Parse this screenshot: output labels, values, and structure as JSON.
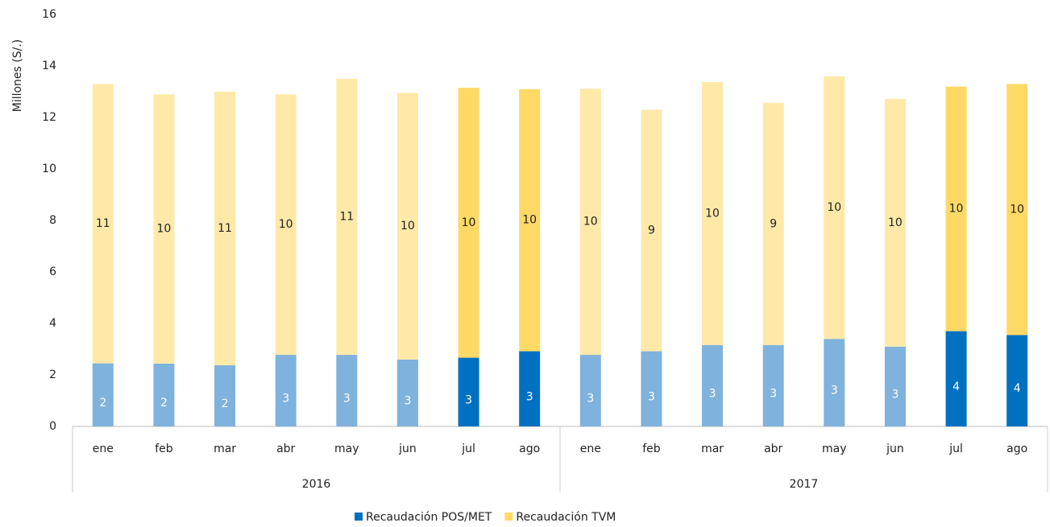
{
  "chart_data": {
    "type": "stacked-bar",
    "y_label": "Millones (S/.)",
    "categories": [
      "ene",
      "feb",
      "mar",
      "abr",
      "may",
      "jun",
      "jul",
      "ago",
      "ene",
      "feb",
      "mar",
      "abr",
      "may",
      "jun",
      "jul",
      "ago"
    ],
    "x_groups": [
      {
        "label": "2016",
        "size": 8
      },
      {
        "label": "2017",
        "size": 8
      }
    ],
    "series": [
      {
        "name": "Recaudación POS/MET",
        "color": "#0070c0",
        "colors": [
          "#7fb2dc",
          "#7fb2dc",
          "#7fb2dc",
          "#7fb2dc",
          "#7fb2dc",
          "#7fb2dc",
          "#0070c0",
          "#0070c0",
          "#7fb2dc",
          "#7fb2dc",
          "#7fb2dc",
          "#7fb2dc",
          "#7fb2dc",
          "#7fb2dc",
          "#0070c0",
          "#0070c0"
        ],
        "values": [
          2.45,
          2.44,
          2.38,
          2.78,
          2.78,
          2.6,
          2.67,
          2.92,
          2.78,
          2.92,
          3.16,
          3.16,
          3.4,
          3.1,
          3.7,
          3.55
        ],
        "value_labels": [
          "2",
          "2",
          "2",
          "3",
          "3",
          "3",
          "3",
          "3",
          "3",
          "3",
          "3",
          "3",
          "3",
          "3",
          "4",
          "4"
        ]
      },
      {
        "name": "Recaudación TVM",
        "color": "#ffd966",
        "colors": [
          "#ffe9a8",
          "#ffe9a8",
          "#ffe9a8",
          "#ffe9a8",
          "#ffe9a8",
          "#ffe9a8",
          "#ffd966",
          "#ffd966",
          "#ffe9a8",
          "#ffe9a8",
          "#ffe9a8",
          "#ffe9a8",
          "#ffe9a8",
          "#ffe9a8",
          "#ffd966",
          "#ffd966"
        ],
        "values": [
          10.85,
          10.46,
          10.62,
          10.12,
          10.72,
          10.35,
          10.48,
          10.18,
          10.34,
          9.38,
          10.22,
          9.41,
          10.2,
          9.62,
          9.5,
          9.75
        ],
        "value_labels": [
          "11",
          "10",
          "11",
          "10",
          "11",
          "10",
          "10",
          "10",
          "10",
          "9",
          "10",
          "9",
          "10",
          "10",
          "10",
          "10"
        ]
      }
    ],
    "ylim": [
      0,
      16
    ],
    "yticks": [
      0,
      2,
      4,
      6,
      8,
      10,
      12,
      14,
      16
    ],
    "grid": false,
    "legend": "bottom"
  }
}
